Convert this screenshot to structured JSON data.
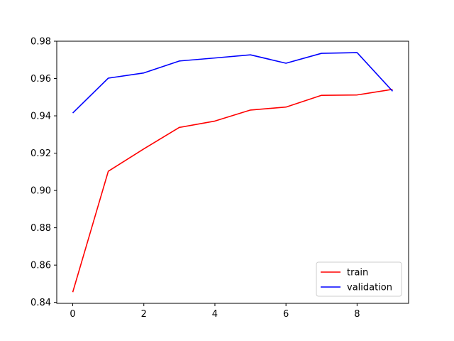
{
  "chart_data": {
    "type": "line",
    "title": "",
    "xlabel": "",
    "ylabel": "",
    "x": [
      0,
      1,
      2,
      3,
      4,
      5,
      6,
      7,
      8,
      9
    ],
    "xlim": [
      -0.45,
      9.45
    ],
    "ylim": [
      0.8395,
      0.98
    ],
    "x_ticks": [
      0,
      2,
      4,
      6,
      8
    ],
    "x_tick_labels": [
      "0",
      "2",
      "4",
      "6",
      "8"
    ],
    "y_ticks": [
      0.84,
      0.86,
      0.88,
      0.9,
      0.92,
      0.94,
      0.96,
      0.98
    ],
    "y_tick_labels": [
      "0.84",
      "0.86",
      "0.88",
      "0.90",
      "0.92",
      "0.94",
      "0.96",
      "0.98"
    ],
    "grid": false,
    "legend_position": "lower-right",
    "series": [
      {
        "name": "train",
        "color": "#ff0000",
        "values": [
          0.8455,
          0.9103,
          0.9223,
          0.9338,
          0.9372,
          0.9431,
          0.9447,
          0.951,
          0.9512,
          0.9542
        ]
      },
      {
        "name": "validation",
        "color": "#0000ff",
        "values": [
          0.9415,
          0.9602,
          0.963,
          0.9694,
          0.971,
          0.9727,
          0.9682,
          0.9735,
          0.9739,
          0.9532
        ]
      }
    ]
  }
}
